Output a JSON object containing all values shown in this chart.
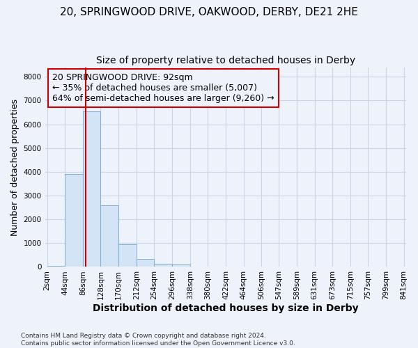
{
  "title1": "20, SPRINGWOOD DRIVE, OAKWOOD, DERBY, DE21 2HE",
  "title2": "Size of property relative to detached houses in Derby",
  "xlabel": "Distribution of detached houses by size in Derby",
  "ylabel": "Number of detached properties",
  "footnote": "Contains HM Land Registry data © Crown copyright and database right 2024.\nContains public sector information licensed under the Open Government Licence v3.0.",
  "bin_edges": [
    2,
    44,
    86,
    128,
    170,
    212,
    254,
    296,
    338,
    380,
    422,
    464,
    506,
    547,
    589,
    631,
    673,
    715,
    757,
    799,
    841
  ],
  "bar_heights": [
    50,
    3900,
    6550,
    2600,
    950,
    330,
    130,
    100,
    0,
    0,
    0,
    0,
    0,
    0,
    0,
    0,
    0,
    0,
    0,
    0
  ],
  "bar_color": "#d4e4f7",
  "bar_edgecolor": "#7bafd4",
  "vline_x": 92,
  "vline_color": "#cc0000",
  "annotation_text": "20 SPRINGWOOD DRIVE: 92sqm\n← 35% of detached houses are smaller (5,007)\n64% of semi-detached houses are larger (9,260) →",
  "annotation_box_color": "#cc0000",
  "ylim": [
    0,
    8400
  ],
  "yticks": [
    0,
    1000,
    2000,
    3000,
    4000,
    5000,
    6000,
    7000,
    8000
  ],
  "bg_color": "#eef2fb",
  "grid_color": "#c8d4e8",
  "title1_fontsize": 11,
  "title2_fontsize": 10,
  "xlabel_fontsize": 10,
  "ylabel_fontsize": 9,
  "annotation_fontsize": 9,
  "tick_fontsize": 7.5,
  "footnote_fontsize": 6.5
}
